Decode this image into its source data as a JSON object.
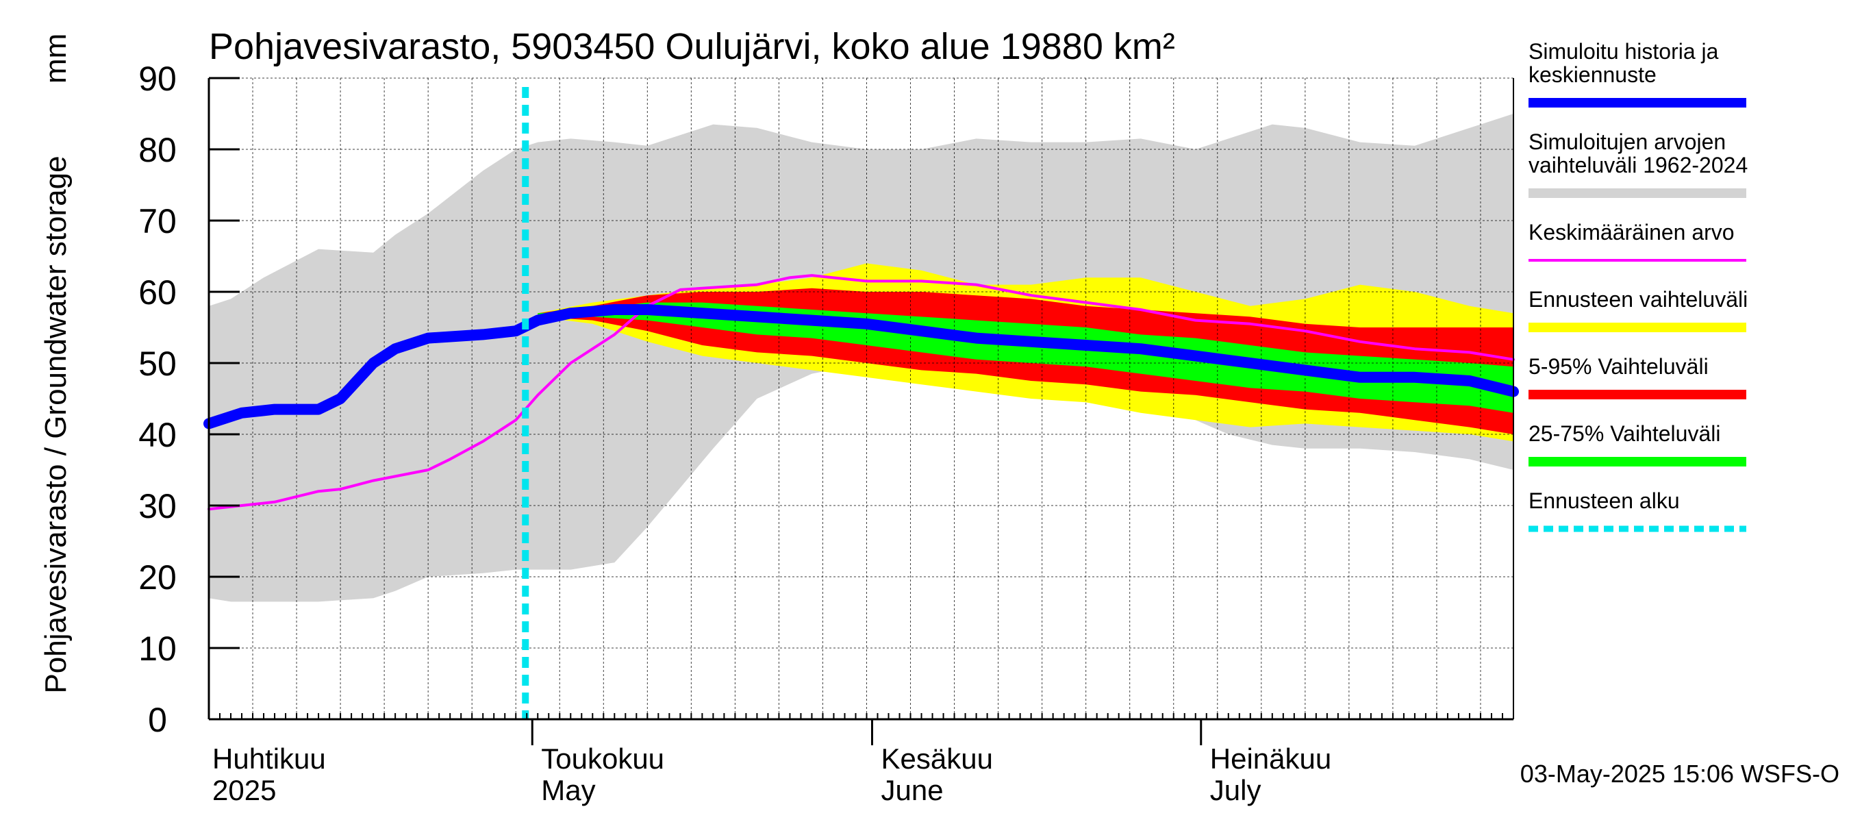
{
  "chart_data": {
    "type": "area",
    "title": "Pohjavesivarasto, 5903450 Oulujärvi, koko alue 19880 km²",
    "ylabel": "Pohjavesivarasto / Groundwater storage",
    "yunit": "mm",
    "ylim": [
      0,
      90
    ],
    "yticks": [
      0,
      10,
      20,
      30,
      40,
      50,
      60,
      70,
      80,
      90
    ],
    "xlim_days": [
      0,
      119
    ],
    "x_description": "days since 1 April 2025",
    "month_labels": [
      {
        "day": 0,
        "line1": "Huhtikuu",
        "line2": "2025"
      },
      {
        "day": 30,
        "line1": "Toukokuu",
        "line2": "May"
      },
      {
        "day": 61,
        "line1": "Kesäkuu",
        "line2": "June"
      },
      {
        "day": 91,
        "line1": "Heinäkuu",
        "line2": "July"
      }
    ],
    "forecast_start_day": 30,
    "grid": true,
    "series": [
      {
        "name": "Simuloitujen arvojen vaihteluväli 1962-2024",
        "kind": "band",
        "color": "#d3d3d3",
        "x": [
          0,
          2,
          5,
          10,
          15,
          17,
          20,
          25,
          28,
          30,
          33,
          37,
          40,
          46,
          50,
          55,
          60,
          65,
          70,
          75,
          80,
          85,
          90,
          93,
          97,
          100,
          105,
          110,
          115,
          119
        ],
        "upper": [
          58,
          59,
          62,
          66,
          65.5,
          68,
          71,
          77,
          80,
          81,
          81.5,
          81,
          80.5,
          83.5,
          83,
          81,
          80,
          80,
          81.5,
          81,
          81,
          81.5,
          80,
          81.5,
          83.5,
          83,
          81,
          80.5,
          83,
          85
        ],
        "lower": [
          17,
          16.5,
          16.5,
          16.5,
          17,
          18,
          20,
          20.5,
          21,
          21,
          21,
          22,
          27,
          38,
          45,
          48.5,
          50,
          49.5,
          48,
          47,
          46,
          44.5,
          42,
          40,
          38.5,
          38,
          38,
          37.5,
          36.5,
          35
        ]
      },
      {
        "name": "Ennusteen vaihteluväli",
        "kind": "band",
        "color": "#ffff00",
        "x": [
          30,
          35,
          40,
          45,
          50,
          55,
          60,
          65,
          70,
          75,
          80,
          85,
          90,
          95,
          100,
          105,
          110,
          115,
          119
        ],
        "upper": [
          57,
          58.5,
          59.5,
          60.5,
          61,
          62,
          64,
          63,
          61,
          61,
          62,
          62,
          60,
          58,
          59,
          61,
          60,
          58,
          57
        ],
        "lower": [
          56.5,
          55.5,
          53,
          51,
          50,
          49,
          48,
          47,
          46,
          45,
          44.5,
          43,
          42,
          41,
          41.5,
          41,
          40.5,
          40,
          39
        ]
      },
      {
        "name": "5-95% Vaihteluväli",
        "kind": "band",
        "color": "#ff0000",
        "x": [
          30,
          35,
          40,
          45,
          50,
          55,
          60,
          65,
          70,
          75,
          80,
          85,
          90,
          95,
          100,
          105,
          110,
          115,
          119
        ],
        "upper": [
          57,
          58,
          59.5,
          60,
          60,
          60.5,
          60,
          60,
          59.5,
          59,
          58,
          57.5,
          57,
          56.5,
          55.5,
          55,
          55,
          55,
          55
        ],
        "lower": [
          56.5,
          56,
          54.5,
          52.5,
          51.5,
          51,
          50,
          49,
          48.5,
          47.5,
          47,
          46,
          45.5,
          44.5,
          43.5,
          43,
          42,
          41,
          40
        ]
      },
      {
        "name": "25-75% Vaihteluväli",
        "kind": "band",
        "color": "#00ff00",
        "x": [
          30,
          35,
          40,
          45,
          50,
          55,
          60,
          65,
          70,
          75,
          80,
          85,
          90,
          95,
          100,
          105,
          110,
          115,
          119
        ],
        "upper": [
          57,
          57.5,
          58.5,
          58.5,
          58,
          57.5,
          57,
          56.5,
          56,
          55.5,
          55,
          54,
          53.5,
          52.5,
          51.5,
          51,
          50.5,
          50,
          49.5
        ],
        "lower": [
          56.5,
          56.5,
          56,
          55,
          54,
          53.5,
          52.5,
          51.5,
          50.5,
          50,
          49.5,
          48.5,
          47.5,
          46.5,
          46,
          45,
          44.5,
          44,
          43
        ]
      },
      {
        "name": "Keskimääräinen arvo",
        "kind": "line",
        "color": "#ff00ff",
        "x": [
          0,
          3,
          6,
          10,
          12,
          15,
          20,
          22,
          25,
          28,
          30,
          33,
          37,
          40,
          43,
          45,
          50,
          53,
          55,
          60,
          65,
          70,
          75,
          80,
          85,
          90,
          95,
          100,
          105,
          110,
          115,
          119
        ],
        "values": [
          29.5,
          30,
          30.5,
          32,
          32.3,
          33.5,
          35,
          36.5,
          39,
          42,
          45.5,
          50,
          54,
          58,
          60.3,
          60.5,
          61,
          62,
          62.3,
          61.5,
          61.5,
          61,
          59.5,
          58.5,
          57.5,
          56,
          55.5,
          54.5,
          53,
          52,
          51.5,
          50.5
        ]
      },
      {
        "name": "Simuloitu historia ja keskiennuste",
        "kind": "line",
        "color": "#0000ff",
        "x": [
          0,
          3,
          6,
          10,
          12,
          15,
          17,
          20,
          25,
          28,
          30,
          33,
          37,
          40,
          45,
          50,
          55,
          60,
          65,
          70,
          75,
          80,
          85,
          90,
          95,
          100,
          105,
          110,
          115,
          119
        ],
        "values": [
          41.5,
          43,
          43.5,
          43.5,
          45,
          50,
          52,
          53.5,
          54,
          54.5,
          56,
          57,
          57.5,
          57.5,
          57,
          56.5,
          56,
          55.5,
          54.5,
          53.5,
          53,
          52.5,
          52,
          51,
          50,
          49,
          48,
          48,
          47.5,
          46
        ]
      }
    ],
    "legend": [
      {
        "label_lines": [
          "Simuloitu historia ja",
          "keskiennuste"
        ],
        "color": "#0000ff",
        "style": "thick"
      },
      {
        "label_lines": [
          "Simuloitujen arvojen",
          "vaihteluväli 1962-2024"
        ],
        "color": "#d3d3d3",
        "style": "thick"
      },
      {
        "label_lines": [
          "Keskimääräinen arvo"
        ],
        "color": "#ff00ff",
        "style": "thin"
      },
      {
        "label_lines": [
          "Ennusteen vaihteluväli"
        ],
        "color": "#ffff00",
        "style": "thick"
      },
      {
        "label_lines": [
          "5-95% Vaihteluväli"
        ],
        "color": "#ff0000",
        "style": "thick"
      },
      {
        "label_lines": [
          "25-75% Vaihteluväli"
        ],
        "color": "#00ff00",
        "style": "thick"
      },
      {
        "label_lines": [
          "Ennusteen alku"
        ],
        "color": "#00e5ee",
        "style": "dotted"
      }
    ],
    "footer": "03-May-2025 15:06 WSFS-O"
  }
}
